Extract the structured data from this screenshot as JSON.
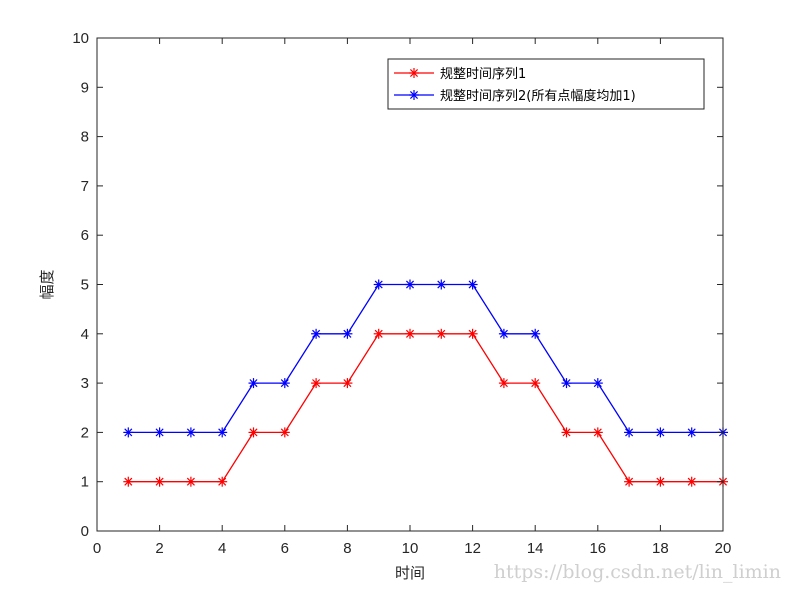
{
  "chart_data": {
    "type": "line",
    "title": "",
    "xlabel": "时间",
    "ylabel": "幅度",
    "xlim": [
      0,
      20
    ],
    "ylim": [
      0,
      10
    ],
    "xticks": [
      "0",
      "2",
      "4",
      "6",
      "8",
      "10",
      "12",
      "14",
      "16",
      "18",
      "20"
    ],
    "yticks": [
      "0",
      "1",
      "2",
      "3",
      "4",
      "5",
      "6",
      "7",
      "8",
      "9",
      "10"
    ],
    "grid": false,
    "legend_position": "top-right",
    "x": [
      1,
      2,
      3,
      4,
      5,
      6,
      7,
      8,
      9,
      10,
      11,
      12,
      13,
      14,
      15,
      16,
      17,
      18,
      19,
      20
    ],
    "series": [
      {
        "name": "规整时间序列1",
        "color": "#ff0000",
        "marker": "asterisk",
        "values": [
          1,
          1,
          1,
          1,
          2,
          2,
          3,
          3,
          4,
          4,
          4,
          4,
          3,
          3,
          2,
          2,
          1,
          1,
          1,
          1
        ]
      },
      {
        "name": "规整时间序列2(所有点幅度均加1)",
        "color": "#0000ff",
        "marker": "asterisk",
        "values": [
          2,
          2,
          2,
          2,
          3,
          3,
          4,
          4,
          5,
          5,
          5,
          5,
          4,
          4,
          3,
          3,
          2,
          2,
          2,
          2
        ]
      }
    ]
  },
  "watermark": "https://blog.csdn.net/lin_limin"
}
